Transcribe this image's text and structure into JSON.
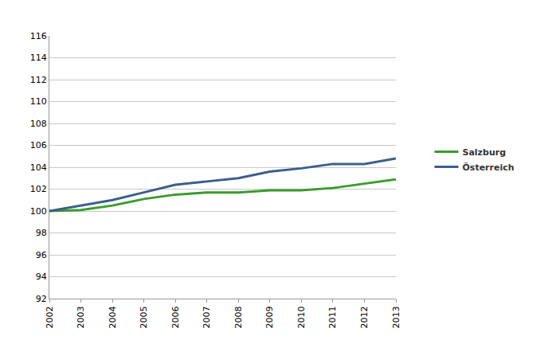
{
  "chart_data": {
    "type": "line",
    "categories": [
      "2002",
      "2003",
      "2004",
      "2005",
      "2006",
      "2007",
      "2008",
      "2009",
      "2010",
      "2011",
      "2012",
      "2013"
    ],
    "series": [
      {
        "name": "Salzburg",
        "color": "#3a9c2c",
        "values": [
          100,
          100.1,
          100.5,
          101.1,
          101.5,
          101.7,
          101.7,
          101.9,
          101.9,
          102.1,
          102.5,
          102.9
        ]
      },
      {
        "name": "Österreich",
        "color": "#3c5f8c",
        "values": [
          100,
          100.5,
          101,
          101.7,
          102.4,
          102.7,
          103,
          103.6,
          103.9,
          104.3,
          104.3,
          104.8
        ]
      }
    ],
    "ylim": [
      92,
      116
    ],
    "yticks": [
      92,
      94,
      96,
      98,
      100,
      102,
      104,
      106,
      108,
      110,
      112,
      114,
      116
    ],
    "grid": true,
    "legend": "right"
  }
}
